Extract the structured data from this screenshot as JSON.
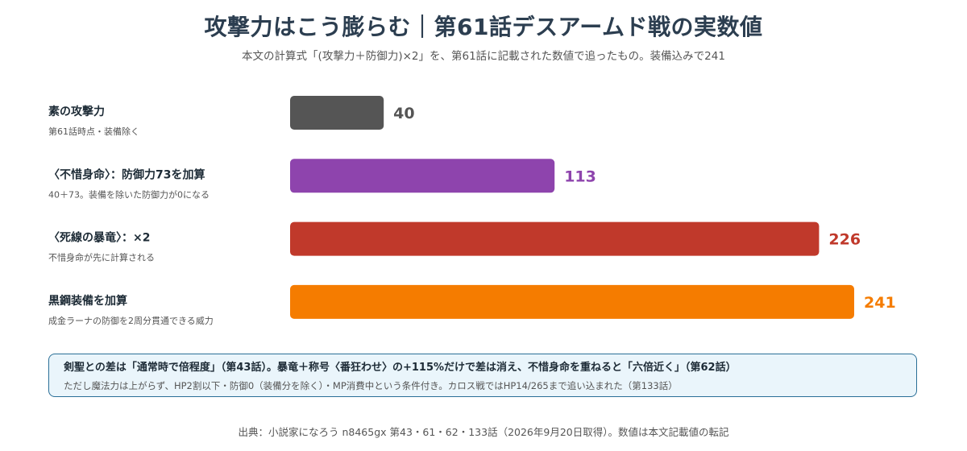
{
  "title": "攻撃力はこう膨らむ｜第61話デスアームド戦の実数値",
  "subtitle": "本文の計算式「(攻撃力＋防御力)×2」を、第61話に記載された数値で追ったもの。装備込みで241",
  "chart_data": {
    "type": "bar",
    "orientation": "horizontal",
    "title": "攻撃力はこう膨らむ｜第61話デスアームド戦の実数値",
    "subtitle": "本文の計算式「(攻撃力＋防御力)×2」を、第61話に記載された数値で追ったもの。装備込みで241",
    "categories": [
      "素の攻撃力",
      "〈不惜身命〉：防御力73を加算",
      "〈死線の暴竜〉：×2",
      "黒鋼装備を加算"
    ],
    "category_notes": [
      "第61話時点・装備除く",
      "40＋73。装備を除いた防御力が0になる",
      "不惜身命が先に計算される",
      "成金ラーナの防御を2周分貫通できる威力"
    ],
    "values": [
      40,
      113,
      226,
      241
    ],
    "value_labels": [
      "40",
      "113",
      "226",
      "241"
    ],
    "colors": [
      "#555555",
      "#8e44ad",
      "#c0392b",
      "#f57c00"
    ],
    "xlim": [
      0,
      241
    ],
    "grid": false,
    "legend": "none"
  },
  "note": {
    "main": "剣聖との差は「通常時で倍程度」（第43話）。暴竜＋称号〈番狂わせ〉の+115%だけで差は消え、不惜身命を重ねると「六倍近く」（第62話）",
    "sub": "ただし魔法力は上がらず、HP2割以下・防御0（装備分を除く）・MP消費中という条件付き。カロス戦ではHP14/265まで追い込まれた（第133話）"
  },
  "source": "出典：小説家になろう n8465gx 第43・61・62・133話（2026年9月20日取得）。数値は本文記載値の転記"
}
